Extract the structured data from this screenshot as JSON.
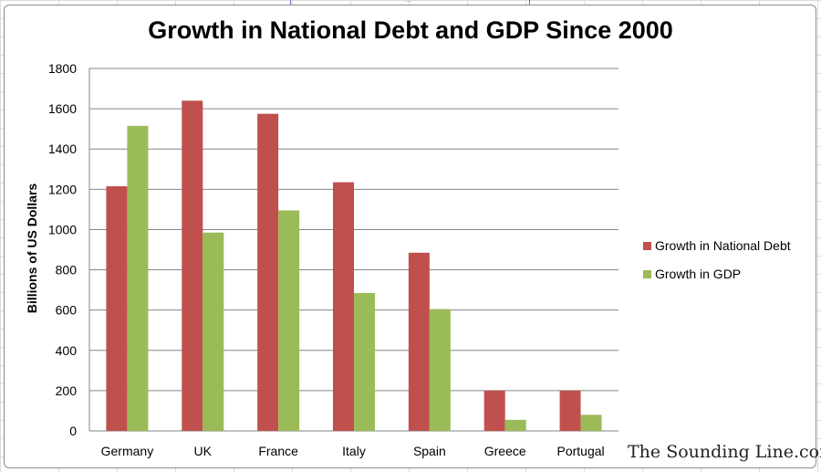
{
  "chart_data": {
    "type": "bar",
    "title": "Growth in National Debt and GDP Since 2000",
    "ylabel": "Billions of US Dollars",
    "xlabel": "",
    "ylim": [
      0,
      1800
    ],
    "yticks": [
      0,
      200,
      400,
      600,
      800,
      1000,
      1200,
      1400,
      1600,
      1800
    ],
    "categories": [
      "Germany",
      "UK",
      "France",
      "Italy",
      "Spain",
      "Greece",
      "Portugal"
    ],
    "series": [
      {
        "name": "Growth in National Debt",
        "color": "#c0504d",
        "values": [
          1215,
          1640,
          1575,
          1235,
          885,
          200,
          200
        ]
      },
      {
        "name": "Growth in GDP",
        "color": "#9bbb59",
        "values": [
          1515,
          985,
          1095,
          685,
          605,
          55,
          80
        ]
      }
    ],
    "grid": true,
    "legend": "right"
  },
  "watermark": "The Sounding Line.com"
}
